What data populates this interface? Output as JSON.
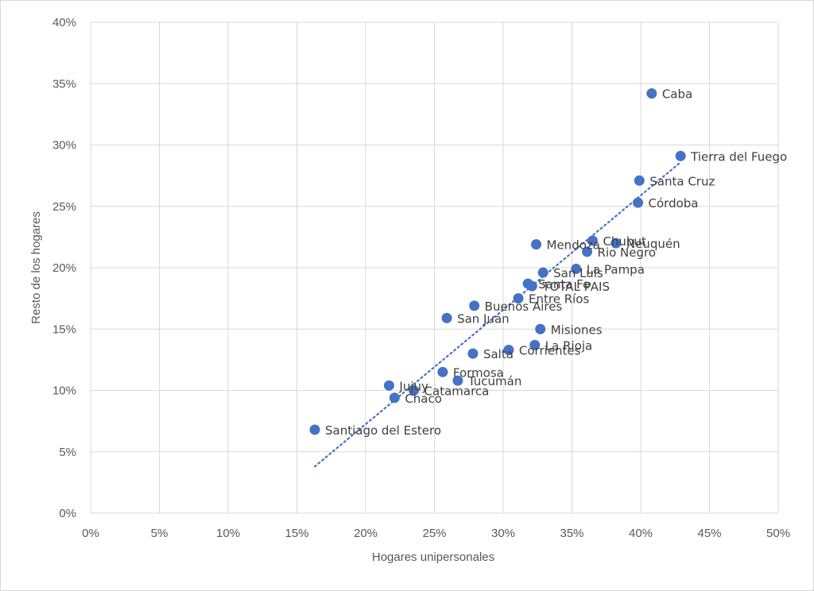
{
  "chart_data": {
    "type": "scatter",
    "xlabel": "Hogares unipersonales",
    "ylabel": "Resto de los hogares",
    "xlim": [
      0,
      0.5
    ],
    "ylim": [
      0,
      0.4
    ],
    "x_ticks": [
      "0%",
      "5%",
      "10%",
      "15%",
      "20%",
      "25%",
      "30%",
      "35%",
      "40%",
      "45%",
      "50%"
    ],
    "y_ticks": [
      "0%",
      "5%",
      "10%",
      "15%",
      "20%",
      "25%",
      "30%",
      "35%",
      "40%"
    ],
    "grid": true,
    "marker_color": "#4472c4",
    "trendline": {
      "type": "linear",
      "style": "dotted",
      "color": "#4472c4",
      "from": [
        0.163,
        0.038
      ],
      "to": [
        0.428,
        0.285
      ]
    },
    "points": [
      {
        "label": "Caba",
        "x": 0.408,
        "y": 0.342
      },
      {
        "label": "Tierra del Fuego",
        "x": 0.429,
        "y": 0.291
      },
      {
        "label": "Santa Cruz",
        "x": 0.399,
        "y": 0.271
      },
      {
        "label": "Córdoba",
        "x": 0.398,
        "y": 0.253
      },
      {
        "label": "Chubut",
        "x": 0.365,
        "y": 0.222
      },
      {
        "label": "Neuquén",
        "x": 0.382,
        "y": 0.22
      },
      {
        "label": "Mendoza",
        "x": 0.324,
        "y": 0.219
      },
      {
        "label": "Rio Negro",
        "x": 0.361,
        "y": 0.213
      },
      {
        "label": "La Pampa",
        "x": 0.353,
        "y": 0.199
      },
      {
        "label": "San Luis",
        "x": 0.329,
        "y": 0.196
      },
      {
        "label": "Santa Fe",
        "x": 0.318,
        "y": 0.187
      },
      {
        "label": "TOTAL PAIS",
        "x": 0.321,
        "y": 0.185
      },
      {
        "label": "Entre Ríos",
        "x": 0.311,
        "y": 0.175
      },
      {
        "label": "Buenos Aires",
        "x": 0.279,
        "y": 0.169
      },
      {
        "label": "San Juan",
        "x": 0.259,
        "y": 0.159
      },
      {
        "label": "Misiones",
        "x": 0.327,
        "y": 0.15
      },
      {
        "label": "La Rioja",
        "x": 0.323,
        "y": 0.137
      },
      {
        "label": "Corrientes",
        "x": 0.304,
        "y": 0.133
      },
      {
        "label": "Salta",
        "x": 0.278,
        "y": 0.13
      },
      {
        "label": "Formosa",
        "x": 0.256,
        "y": 0.115
      },
      {
        "label": "Tucumán",
        "x": 0.267,
        "y": 0.108
      },
      {
        "label": "Jujuy",
        "x": 0.217,
        "y": 0.104
      },
      {
        "label": "Catamarca",
        "x": 0.235,
        "y": 0.1
      },
      {
        "label": "Chaco",
        "x": 0.221,
        "y": 0.094
      },
      {
        "label": "Santiago del Estero",
        "x": 0.163,
        "y": 0.068
      }
    ]
  }
}
